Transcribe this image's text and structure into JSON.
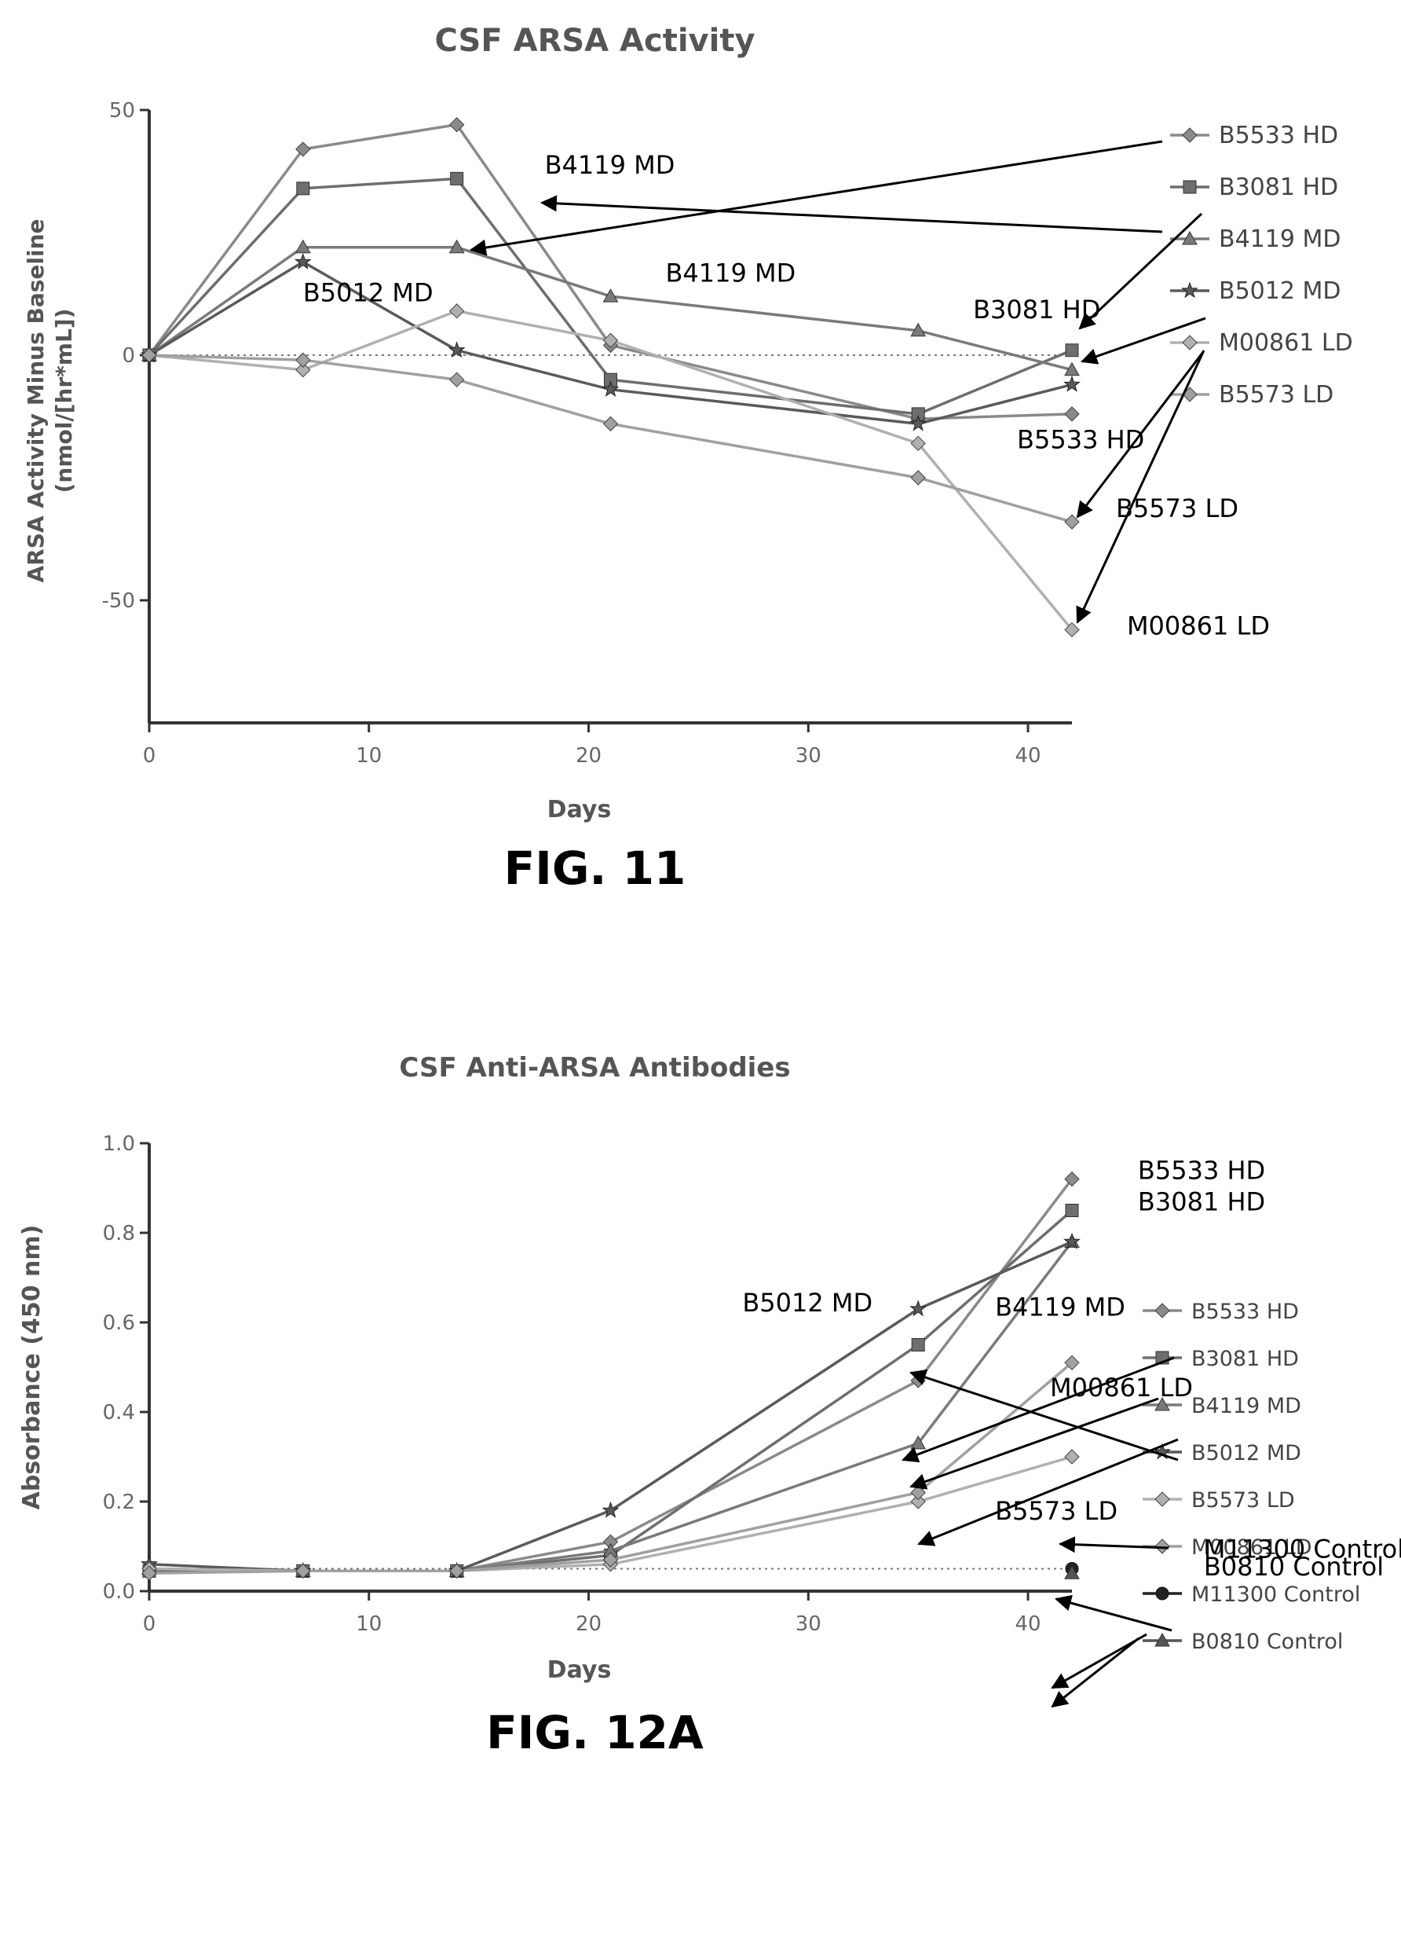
{
  "figures": [
    {
      "caption": "FIG. 11",
      "chart_data": {
        "type": "line",
        "title": "CSF ARSA Activity",
        "xlabel": "Days",
        "ylabel_line1": "ARSA Activity Minus Baseline",
        "ylabel_line2": "(nmol/[hr*mL])",
        "xlim": [
          0,
          42
        ],
        "ylim": [
          -75,
          50
        ],
        "xticks": [
          0,
          10,
          20,
          30,
          40
        ],
        "yticks": [
          -50,
          0,
          50
        ],
        "legend_position": "right",
        "series": [
          {
            "name": "B5533 HD",
            "color": "#8a8a8a",
            "marker": "diamond",
            "x": [
              0,
              7,
              14,
              21,
              35,
              42
            ],
            "y": [
              0,
              42,
              47,
              2,
              -13,
              -12
            ]
          },
          {
            "name": "B3081 HD",
            "color": "#6e6e6e",
            "marker": "square",
            "x": [
              0,
              7,
              14,
              21,
              35,
              42
            ],
            "y": [
              0,
              34,
              36,
              -5,
              -12,
              1
            ]
          },
          {
            "name": "B4119 MD",
            "color": "#7a7a7a",
            "marker": "triangle",
            "x": [
              0,
              7,
              14,
              21,
              35,
              42
            ],
            "y": [
              0,
              22,
              22,
              12,
              5,
              -3
            ]
          },
          {
            "name": "B5012 MD",
            "color": "#5a5a5a",
            "marker": "star",
            "x": [
              0,
              7,
              14,
              21,
              35,
              42
            ],
            "y": [
              0,
              19,
              1,
              -7,
              -14,
              -6
            ]
          },
          {
            "name": "M00861 LD",
            "color": "#b0b0b0",
            "marker": "diamond",
            "x": [
              0,
              7,
              14,
              21,
              35,
              42
            ],
            "y": [
              0,
              -3,
              9,
              3,
              -18,
              -56
            ]
          },
          {
            "name": "B5573 LD",
            "color": "#a0a0a0",
            "marker": "diamond",
            "x": [
              0,
              7,
              14,
              21,
              35,
              42
            ],
            "y": [
              0,
              -1,
              -5,
              -14,
              -25,
              -34
            ]
          }
        ],
        "baseline": 0,
        "annotations": [
          {
            "text": "B4119 MD",
            "x": 18,
            "y": 37
          },
          {
            "text": "B4119 MD",
            "x": 23.5,
            "y": 15
          },
          {
            "text": "B5012 MD",
            "x": 7,
            "y": 11
          },
          {
            "text": "B3081 HD",
            "x": 37.5,
            "y": 7.5
          },
          {
            "text": "B5533 HD",
            "x": 39.5,
            "y": -19
          },
          {
            "text": "B5573 LD",
            "x": 44,
            "y": -33
          },
          {
            "text": "M00861 LD",
            "x": 44.5,
            "y": -57
          }
        ]
      }
    },
    {
      "caption": "FIG. 12A",
      "chart_data": {
        "type": "line",
        "title": "CSF Anti-ARSA Antibodies",
        "xlabel": "Days",
        "ylabel": "Absorbance (450 nm)",
        "xlim": [
          0,
          42
        ],
        "ylim": [
          0,
          1.0
        ],
        "xticks": [
          0,
          10,
          20,
          30,
          40
        ],
        "yticks": [
          0.0,
          0.2,
          0.4,
          0.6,
          0.8,
          1.0
        ],
        "ytick_labels": [
          "0.0",
          "0.2",
          "0.4",
          "0.6",
          "0.8",
          "1.0"
        ],
        "legend_position": "right",
        "series": [
          {
            "name": "B5533 HD",
            "color": "#8a8a8a",
            "marker": "diamond",
            "x": [
              0,
              7,
              14,
              21,
              35,
              42
            ],
            "y": [
              0.05,
              0.045,
              0.045,
              0.11,
              0.47,
              0.92
            ]
          },
          {
            "name": "B3081 HD",
            "color": "#6e6e6e",
            "marker": "square",
            "x": [
              0,
              7,
              14,
              21,
              35,
              42
            ],
            "y": [
              0.045,
              0.045,
              0.045,
              0.08,
              0.55,
              0.85
            ]
          },
          {
            "name": "B4119 MD",
            "color": "#7a7a7a",
            "marker": "triangle",
            "x": [
              0,
              7,
              14,
              21,
              35,
              42
            ],
            "y": [
              0.05,
              0.045,
              0.045,
              0.09,
              0.33,
              0.78
            ]
          },
          {
            "name": "B5012 MD",
            "color": "#5a5a5a",
            "marker": "star",
            "x": [
              0,
              7,
              14,
              21,
              35,
              42
            ],
            "y": [
              0.06,
              0.045,
              0.045,
              0.18,
              0.63,
              0.78
            ]
          },
          {
            "name": "B5573 LD",
            "color": "#b0b0b0",
            "marker": "diamond",
            "x": [
              0,
              7,
              14,
              21,
              35,
              42
            ],
            "y": [
              0.05,
              0.045,
              0.045,
              0.06,
              0.2,
              0.3
            ]
          },
          {
            "name": "M00861 LD",
            "color": "#a0a0a0",
            "marker": "diamond",
            "x": [
              0,
              7,
              14,
              21,
              35,
              42
            ],
            "y": [
              0.04,
              0.045,
              0.045,
              0.07,
              0.22,
              0.51
            ]
          },
          {
            "name": "M11300 Control",
            "color": "#222222",
            "marker": "circle",
            "x": [
              42
            ],
            "y": [
              0.05
            ]
          },
          {
            "name": "B0810 Control",
            "color": "#555555",
            "marker": "triangle",
            "x": [
              42
            ],
            "y": [
              0.04
            ]
          }
        ],
        "baseline": 0.05,
        "annotations": [
          {
            "text": "B5533 HD",
            "x": 45,
            "y": 0.92
          },
          {
            "text": "B3081 HD",
            "x": 45,
            "y": 0.85
          },
          {
            "text": "B5012 MD",
            "x": 27,
            "y": 0.625
          },
          {
            "text": "B4119 MD",
            "x": 38.5,
            "y": 0.615
          },
          {
            "text": "M00861 LD",
            "x": 41,
            "y": 0.435
          },
          {
            "text": "B5573 LD",
            "x": 38.5,
            "y": 0.16
          },
          {
            "text": "M11300 Control",
            "x": 48,
            "y": 0.075
          },
          {
            "text": "B0810 Control",
            "x": 48,
            "y": 0.035
          }
        ]
      }
    }
  ]
}
